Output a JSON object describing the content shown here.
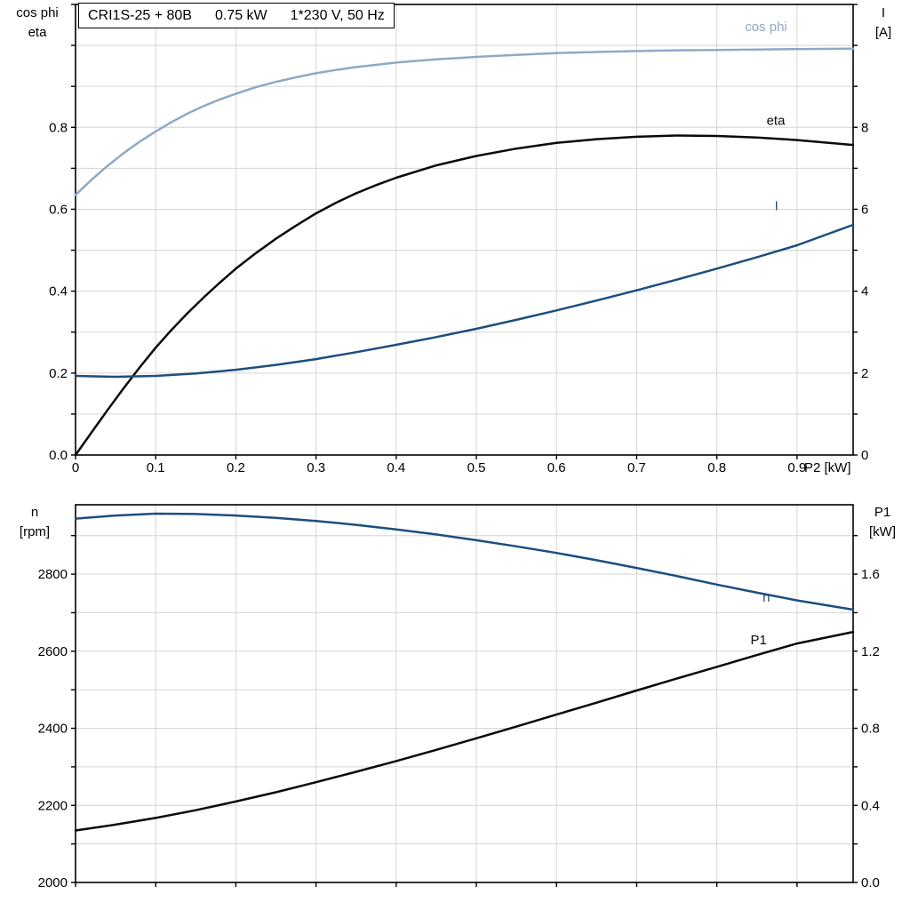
{
  "colors": {
    "axis": "#000000",
    "grid": "#d4d4d4",
    "black": "#0a0a0a",
    "dark_blue": "#1d4e7d",
    "light_blue": "#8fa9c5"
  },
  "chart_data": [
    {
      "type": "line",
      "title": "CRI1S-25 + 80B   0.75 kW   1*230 V, 50 Hz",
      "title_parts": [
        "CRI1S-25 + 80B",
        "0.75 kW",
        "1*230 V, 50 Hz"
      ],
      "x_label": "P2 [kW]",
      "x_range": [
        0,
        0.97
      ],
      "x_grid_step": 0.1,
      "x_ticks": [
        {
          "v": 0,
          "t": "0"
        },
        {
          "v": 0.1,
          "t": "0.1"
        },
        {
          "v": 0.2,
          "t": "0.2"
        },
        {
          "v": 0.3,
          "t": "0.3"
        },
        {
          "v": 0.4,
          "t": "0.4"
        },
        {
          "v": 0.5,
          "t": "0.5"
        },
        {
          "v": 0.6,
          "t": "0.6"
        },
        {
          "v": 0.7,
          "t": "0.7"
        },
        {
          "v": 0.8,
          "t": "0.8"
        },
        {
          "v": 0.9,
          "t": "0.9"
        }
      ],
      "left_axis": {
        "title_lines": [
          "cos phi",
          "eta"
        ],
        "range": [
          0,
          1.1
        ],
        "grid_step": 0.1,
        "ticks": [
          {
            "v": 0,
            "t": "0.0"
          },
          {
            "v": 0.2,
            "t": "0.2"
          },
          {
            "v": 0.4,
            "t": "0.4"
          },
          {
            "v": 0.6,
            "t": "0.6"
          },
          {
            "v": 0.8,
            "t": "0.8"
          }
        ]
      },
      "right_axis": {
        "title_lines": [
          "I",
          "[A]"
        ],
        "range": [
          0,
          11
        ],
        "ticks": [
          {
            "v": 0,
            "t": "0"
          },
          {
            "v": 2,
            "t": "2"
          },
          {
            "v": 4,
            "t": "4"
          },
          {
            "v": 6,
            "t": "6"
          },
          {
            "v": 8,
            "t": "8"
          }
        ]
      },
      "series": [
        {
          "name": "cos phi",
          "axis": "left",
          "color_key": "light_blue",
          "label": {
            "text": "cos phi",
            "x": 0.835,
            "v": 1.035
          },
          "points": [
            [
              0,
              0.635
            ],
            [
              0.02,
              0.672
            ],
            [
              0.04,
              0.706
            ],
            [
              0.06,
              0.737
            ],
            [
              0.08,
              0.765
            ],
            [
              0.1,
              0.79
            ],
            [
              0.12,
              0.813
            ],
            [
              0.14,
              0.834
            ],
            [
              0.16,
              0.852
            ],
            [
              0.18,
              0.868
            ],
            [
              0.2,
              0.882
            ],
            [
              0.225,
              0.898
            ],
            [
              0.25,
              0.911
            ],
            [
              0.275,
              0.922
            ],
            [
              0.3,
              0.932
            ],
            [
              0.325,
              0.94
            ],
            [
              0.35,
              0.947
            ],
            [
              0.4,
              0.958
            ],
            [
              0.45,
              0.966
            ],
            [
              0.5,
              0.972
            ],
            [
              0.55,
              0.977
            ],
            [
              0.6,
              0.981
            ],
            [
              0.65,
              0.984
            ],
            [
              0.7,
              0.986
            ],
            [
              0.75,
              0.988
            ],
            [
              0.8,
              0.989
            ],
            [
              0.85,
              0.99
            ],
            [
              0.9,
              0.991
            ],
            [
              0.97,
              0.992
            ]
          ]
        },
        {
          "name": "eta",
          "axis": "left",
          "color_key": "black",
          "label": {
            "text": "eta",
            "x": 0.862,
            "v": 0.806
          },
          "points": [
            [
              0,
              0
            ],
            [
              0.02,
              0.055
            ],
            [
              0.04,
              0.11
            ],
            [
              0.06,
              0.163
            ],
            [
              0.08,
              0.214
            ],
            [
              0.1,
              0.262
            ],
            [
              0.12,
              0.306
            ],
            [
              0.14,
              0.347
            ],
            [
              0.16,
              0.385
            ],
            [
              0.18,
              0.421
            ],
            [
              0.2,
              0.455
            ],
            [
              0.225,
              0.493
            ],
            [
              0.25,
              0.528
            ],
            [
              0.275,
              0.56
            ],
            [
              0.3,
              0.59
            ],
            [
              0.325,
              0.616
            ],
            [
              0.35,
              0.639
            ],
            [
              0.375,
              0.659
            ],
            [
              0.4,
              0.677
            ],
            [
              0.45,
              0.707
            ],
            [
              0.5,
              0.73
            ],
            [
              0.55,
              0.748
            ],
            [
              0.6,
              0.762
            ],
            [
              0.65,
              0.771
            ],
            [
              0.7,
              0.777
            ],
            [
              0.75,
              0.78
            ],
            [
              0.8,
              0.779
            ],
            [
              0.85,
              0.775
            ],
            [
              0.9,
              0.769
            ],
            [
              0.97,
              0.757
            ]
          ]
        },
        {
          "name": "I",
          "axis": "right",
          "color_key": "dark_blue",
          "label": {
            "text": "I",
            "x": 0.872,
            "v": 5.98
          },
          "points": [
            [
              0,
              1.93
            ],
            [
              0.05,
              1.91
            ],
            [
              0.1,
              1.93
            ],
            [
              0.15,
              1.99
            ],
            [
              0.2,
              2.08
            ],
            [
              0.25,
              2.2
            ],
            [
              0.3,
              2.34
            ],
            [
              0.35,
              2.51
            ],
            [
              0.4,
              2.69
            ],
            [
              0.45,
              2.88
            ],
            [
              0.5,
              3.08
            ],
            [
              0.55,
              3.3
            ],
            [
              0.6,
              3.53
            ],
            [
              0.65,
              3.77
            ],
            [
              0.7,
              4.02
            ],
            [
              0.75,
              4.28
            ],
            [
              0.8,
              4.55
            ],
            [
              0.85,
              4.83
            ],
            [
              0.9,
              5.12
            ],
            [
              0.97,
              5.62
            ]
          ]
        }
      ]
    },
    {
      "type": "line",
      "x_range": [
        0,
        0.97
      ],
      "x_grid_step": 0.1,
      "x_ticks": [],
      "left_axis": {
        "title_lines": [
          "n",
          "[rpm]"
        ],
        "range": [
          2000,
          2980
        ],
        "grid_step": 100,
        "ticks": [
          {
            "v": 2000,
            "t": "2000"
          },
          {
            "v": 2200,
            "t": "2200"
          },
          {
            "v": 2400,
            "t": "2400"
          },
          {
            "v": 2600,
            "t": "2600"
          },
          {
            "v": 2800,
            "t": "2800"
          }
        ]
      },
      "right_axis": {
        "title_lines": [
          "P1",
          "[kW]"
        ],
        "range": [
          0,
          1.96
        ],
        "ticks": [
          {
            "v": 0,
            "t": "0.0"
          },
          {
            "v": 0.4,
            "t": "0.4"
          },
          {
            "v": 0.8,
            "t": "0.8"
          },
          {
            "v": 1.2,
            "t": "1.2"
          },
          {
            "v": 1.6,
            "t": "1.6"
          }
        ]
      },
      "series": [
        {
          "name": "n",
          "axis": "left",
          "color_key": "dark_blue",
          "label": {
            "text": "n",
            "x": 0.857,
            "v": 2729
          },
          "points": [
            [
              0,
              2944
            ],
            [
              0.05,
              2952
            ],
            [
              0.1,
              2957
            ],
            [
              0.15,
              2956
            ],
            [
              0.2,
              2952
            ],
            [
              0.25,
              2946
            ],
            [
              0.3,
              2938
            ],
            [
              0.35,
              2928
            ],
            [
              0.4,
              2916
            ],
            [
              0.45,
              2903
            ],
            [
              0.5,
              2888
            ],
            [
              0.55,
              2872
            ],
            [
              0.6,
              2855
            ],
            [
              0.65,
              2836
            ],
            [
              0.7,
              2816
            ],
            [
              0.75,
              2795
            ],
            [
              0.8,
              2773
            ],
            [
              0.85,
              2752
            ],
            [
              0.9,
              2732
            ],
            [
              0.97,
              2708
            ]
          ]
        },
        {
          "name": "P1",
          "axis": "right",
          "color_key": "black",
          "label": {
            "text": "P1",
            "x": 0.842,
            "v": 1.235
          },
          "points": [
            [
              0,
              0.27
            ],
            [
              0.05,
              0.3
            ],
            [
              0.1,
              0.335
            ],
            [
              0.15,
              0.375
            ],
            [
              0.2,
              0.42
            ],
            [
              0.25,
              0.468
            ],
            [
              0.3,
              0.52
            ],
            [
              0.35,
              0.574
            ],
            [
              0.4,
              0.63
            ],
            [
              0.45,
              0.688
            ],
            [
              0.5,
              0.748
            ],
            [
              0.55,
              0.809
            ],
            [
              0.6,
              0.871
            ],
            [
              0.65,
              0.933
            ],
            [
              0.7,
              0.996
            ],
            [
              0.75,
              1.058
            ],
            [
              0.8,
              1.119
            ],
            [
              0.85,
              1.18
            ],
            [
              0.9,
              1.24
            ],
            [
              0.97,
              1.3
            ]
          ]
        }
      ]
    }
  ]
}
